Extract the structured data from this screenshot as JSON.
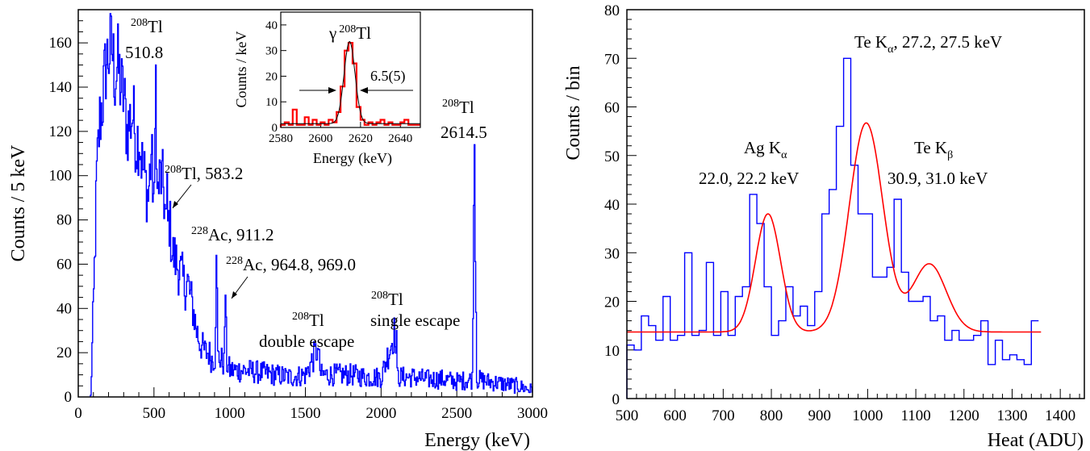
{
  "chart_data": [
    {
      "type": "histogram",
      "xlabel": "Energy (keV)",
      "ylabel": "Counts / 5 keV",
      "xlim": [
        0,
        3000
      ],
      "ylim": [
        0,
        175
      ],
      "xticks": [
        "0",
        "500",
        "1000",
        "1500",
        "2000",
        "2500",
        "3000"
      ],
      "yticks": [
        "0",
        "20",
        "40",
        "60",
        "80",
        "100",
        "120",
        "140",
        "160"
      ],
      "color": "#0000ff",
      "series": [
        {
          "x": [
            80,
            100,
            120,
            140,
            160,
            180,
            200,
            220,
            240,
            260,
            280,
            300,
            320,
            340,
            360,
            380,
            400,
            420,
            440,
            460,
            480,
            500,
            510,
            520,
            540,
            560,
            580,
            600,
            620,
            640,
            660,
            680,
            700,
            720,
            740,
            760,
            780,
            800,
            820,
            840,
            860,
            880,
            900,
            911,
            920,
            940,
            960,
            968,
            980,
            1000,
            1100,
            1200,
            1300,
            1400,
            1500,
            1580,
            1600,
            1700,
            1800,
            1900,
            2000,
            2090,
            2100,
            2200,
            2300,
            2400,
            2500,
            2600,
            2614,
            2630,
            2700,
            2800,
            2900,
            3000
          ],
          "y": [
            0,
            45,
            100,
            125,
            135,
            150,
            155,
            158,
            145,
            150,
            140,
            135,
            120,
            125,
            128,
            115,
            118,
            105,
            98,
            90,
            110,
            85,
            150,
            90,
            100,
            95,
            75,
            80,
            65,
            62,
            58,
            55,
            50,
            52,
            45,
            38,
            30,
            25,
            22,
            20,
            20,
            17,
            18,
            64,
            18,
            17,
            15,
            46,
            15,
            12,
            12,
            11,
            10,
            9,
            10,
            22,
            10,
            10,
            10,
            9,
            9,
            30,
            9,
            9,
            8,
            8,
            7,
            8,
            114,
            8,
            7,
            6,
            5,
            3
          ]
        }
      ],
      "annotations": [
        {
          "iso": "208",
          "el": "Tl",
          "text": "510.8"
        },
        {
          "iso": "208",
          "el": "Tl",
          "text": ", 583.2"
        },
        {
          "iso": "228",
          "el": "Ac",
          "text": ", 911.2"
        },
        {
          "iso": "228",
          "el": "Ac",
          "text": ", 964.8, 969.0"
        },
        {
          "iso": "208",
          "el": "Tl",
          "text": "double escape"
        },
        {
          "iso": "208",
          "el": "Tl",
          "text": "single escape"
        },
        {
          "iso": "208",
          "el": "Tl",
          "text": "2614.5"
        }
      ],
      "inset": {
        "xlabel": "Energy (keV)",
        "ylabel": "Counts / keV",
        "xlim": [
          2580,
          2650
        ],
        "ylim": [
          0,
          45
        ],
        "xticks": [
          "2580",
          "2600",
          "2620",
          "2640"
        ],
        "yticks": [
          "0",
          "10",
          "20",
          "30",
          "40"
        ],
        "title_prefix": "γ",
        "title_iso": "208",
        "title_el": "Tl",
        "fwhm_label": "6.5(5)",
        "hist": {
          "x": [
            2580,
            2582,
            2584,
            2586,
            2588,
            2590,
            2592,
            2594,
            2596,
            2598,
            2600,
            2602,
            2604,
            2606,
            2608,
            2610,
            2612,
            2614,
            2616,
            2618,
            2620,
            2622,
            2624,
            2626,
            2628,
            2630,
            2632,
            2634,
            2636,
            2638,
            2640,
            2642,
            2644,
            2646,
            2648
          ],
          "y": [
            1,
            2,
            1,
            7,
            1,
            1,
            4,
            1,
            3,
            1,
            2,
            1,
            3,
            2,
            6,
            16,
            30,
            33,
            25,
            8,
            3,
            1,
            2,
            1,
            2,
            3,
            1,
            2,
            1,
            1,
            2,
            3,
            1,
            1,
            1
          ]
        },
        "fit": {
          "mean": 2614.5,
          "sigma": 2.76,
          "amplitude": 32,
          "baseline": 1.5
        }
      }
    },
    {
      "type": "histogram",
      "xlabel": "Heat (ADU)",
      "ylabel": "Counts / bin",
      "xlim": [
        500,
        1450
      ],
      "ylim": [
        0,
        80
      ],
      "xticks": [
        "500",
        "600",
        "700",
        "800",
        "900",
        "1000",
        "1100",
        "1200",
        "1300",
        "1400"
      ],
      "yticks": [
        "0",
        "10",
        "20",
        "30",
        "40",
        "50",
        "60",
        "70",
        "80"
      ],
      "color": "#0000ff",
      "bin_width": 15,
      "bin_start": 500,
      "values": [
        11,
        10,
        17,
        15,
        12,
        21,
        12,
        13,
        30,
        13,
        14,
        28,
        13,
        22,
        13,
        21,
        23,
        42,
        36,
        23,
        13,
        16,
        23,
        17,
        19,
        15,
        22,
        38,
        43,
        56,
        70,
        48,
        38,
        38,
        25,
        25,
        27,
        41,
        26,
        20,
        20,
        21,
        16,
        17,
        12,
        14,
        12,
        12,
        13,
        16,
        7,
        12,
        8,
        9,
        8,
        7,
        16
      ],
      "fit": {
        "type": "sum-of-gaussians",
        "baseline": 13.7,
        "x_range": [
          500,
          1360
        ],
        "peaks": [
          {
            "mean": 793,
            "sigma": 26,
            "amplitude": 24.3
          },
          {
            "mean": 997,
            "sigma": 35,
            "amplitude": 43
          },
          {
            "mean": 1128,
            "sigma": 35,
            "amplitude": 14
          }
        ],
        "color": "#ff0000"
      },
      "annotations": [
        {
          "text": "Te K",
          "sub": "α",
          "rest": ", 27.2, 27.5 keV"
        },
        {
          "text": "Ag K",
          "sub": "α",
          "rest": ""
        },
        {
          "text": "22.0, 22.2 keV"
        },
        {
          "text": "Te K",
          "sub": "β",
          "rest": ""
        },
        {
          "text": "30.9, 31.0 keV"
        }
      ]
    }
  ]
}
